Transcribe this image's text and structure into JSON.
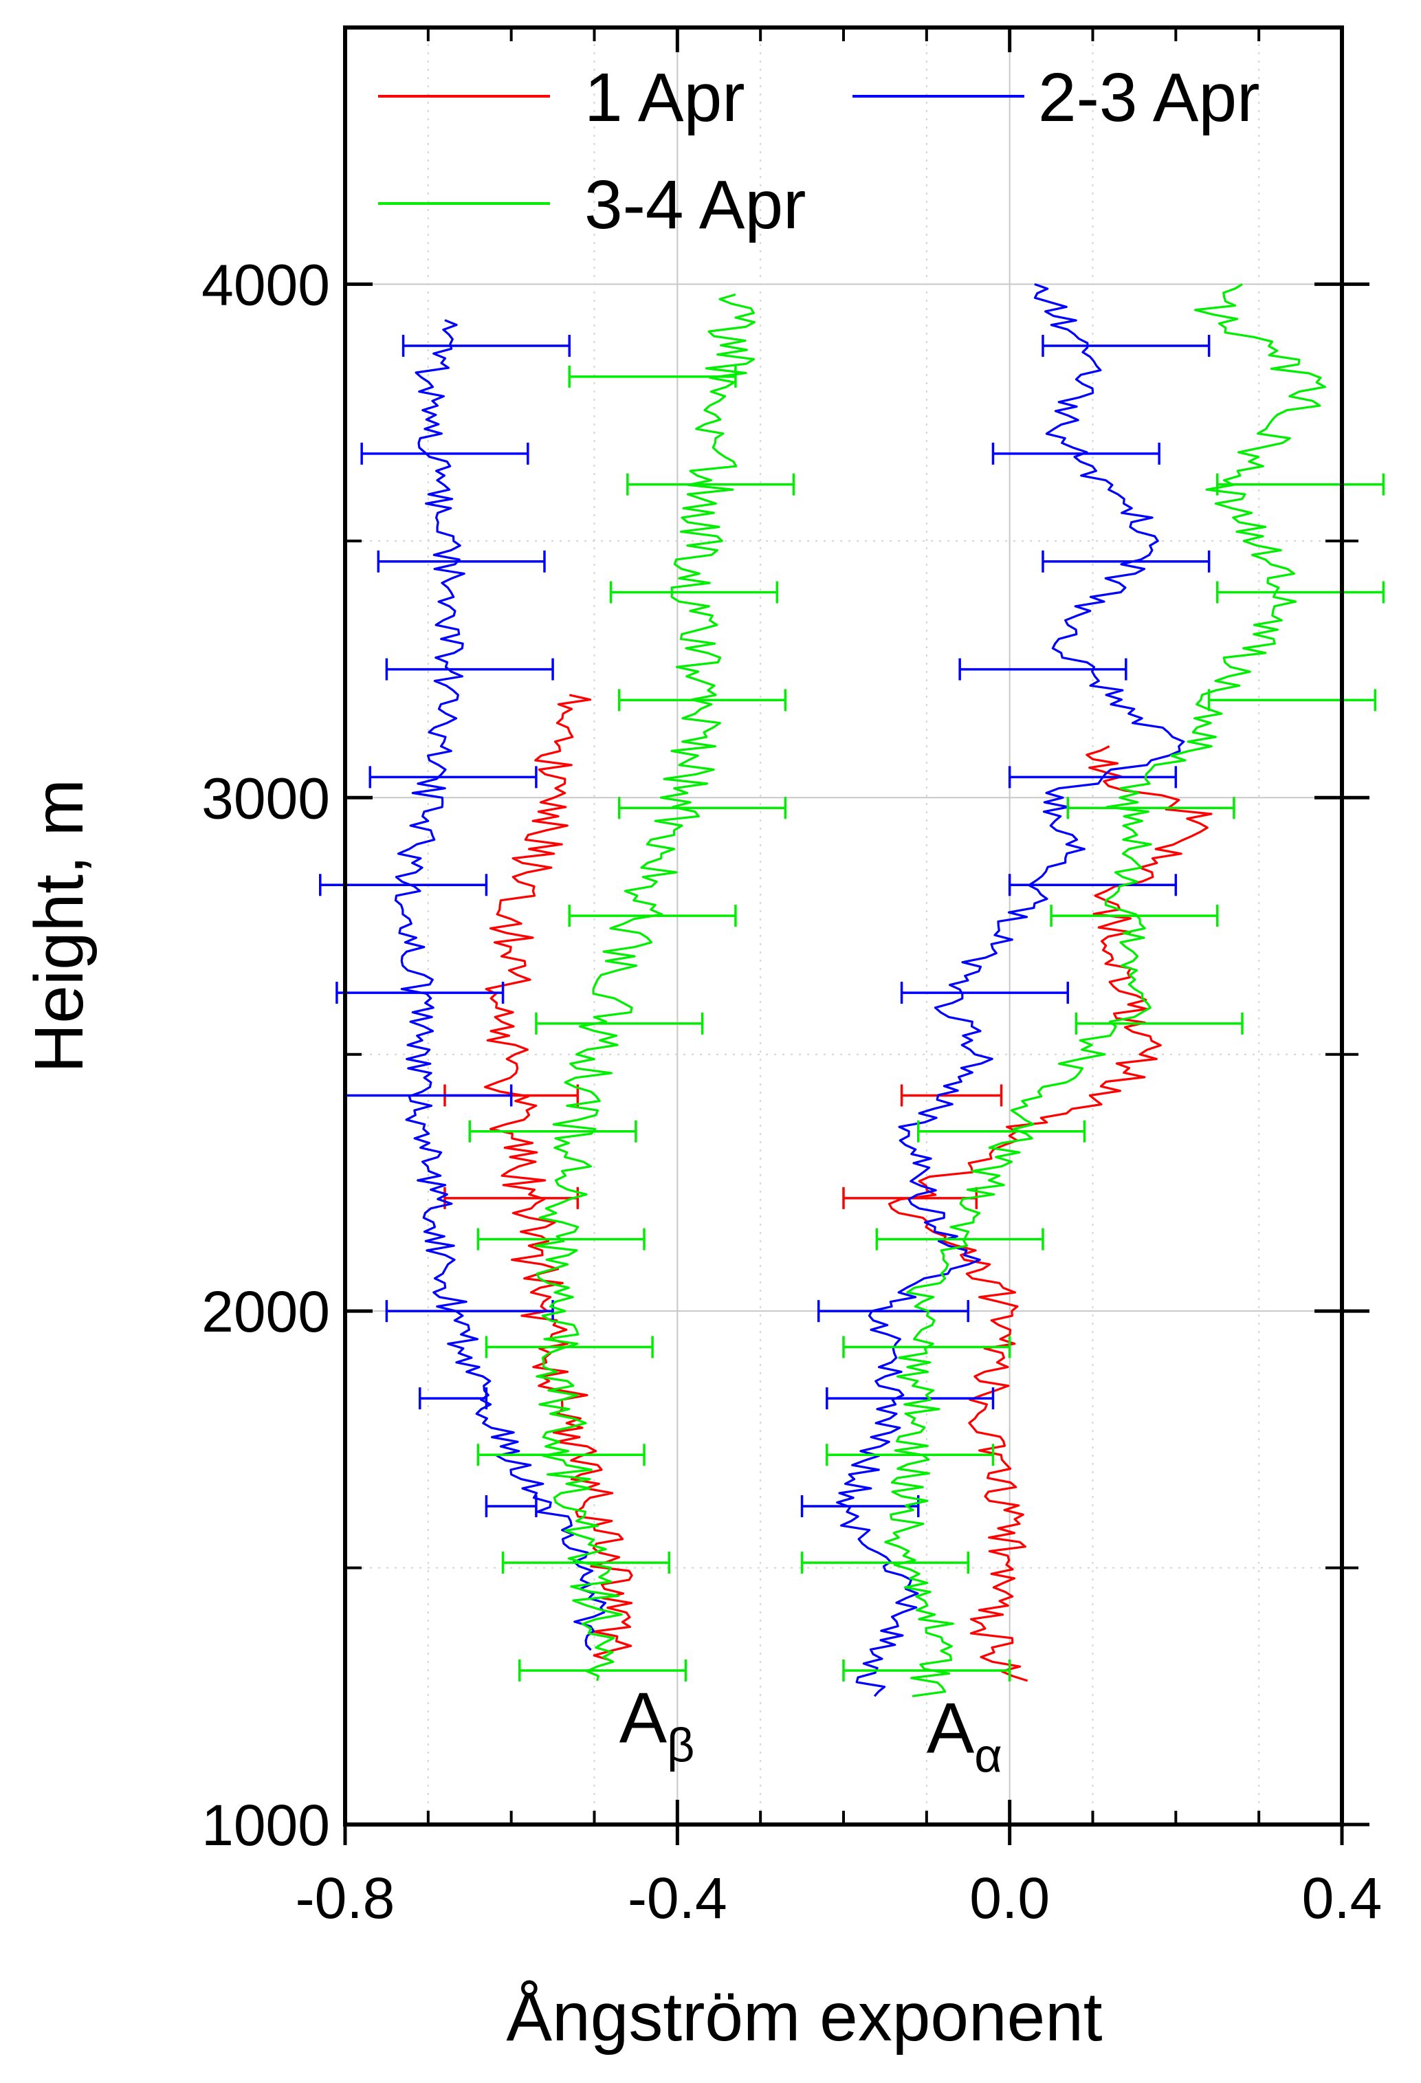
{
  "chart_data": {
    "type": "line",
    "xlabel": "Ångström exponent",
    "ylabel": "Height, m",
    "xlim": [
      -0.8,
      0.4
    ],
    "ylim": [
      1000,
      4500
    ],
    "x_ticks": [
      "-0.8",
      "-0.4",
      "0.0",
      "0.4"
    ],
    "x_tick_values": [
      -0.8,
      -0.4,
      0.0,
      0.4
    ],
    "y_ticks": [
      "1000",
      "2000",
      "3000",
      "4000"
    ],
    "y_tick_values": [
      1000,
      2000,
      3000,
      4000
    ],
    "grid": true,
    "legend_position": "top",
    "annotations": [
      {
        "main": "A",
        "sub": "β",
        "x": -0.47,
        "y": 1160
      },
      {
        "main": "A",
        "sub": "α",
        "x": -0.1,
        "y": 1140
      }
    ],
    "series": [
      {
        "name": "1 Apr",
        "color": "#ff0000",
        "groups": [
          {
            "label": "A_beta",
            "noise": 0.03,
            "points": [
              [
                -0.49,
                1320
              ],
              [
                -0.47,
                1450
              ],
              [
                -0.5,
                1600
              ],
              [
                -0.53,
                1800
              ],
              [
                -0.56,
                2000
              ],
              [
                -0.58,
                2200
              ],
              [
                -0.6,
                2400
              ],
              [
                -0.61,
                2600
              ],
              [
                -0.59,
                2800
              ],
              [
                -0.55,
                3000
              ],
              [
                -0.53,
                3200
              ]
            ]
          },
          {
            "label": "A_alpha",
            "noise": 0.025,
            "points": [
              [
                0.0,
                1280
              ],
              [
                -0.03,
                1400
              ],
              [
                0.0,
                1550
              ],
              [
                -0.03,
                1800
              ],
              [
                0.0,
                2000
              ],
              [
                -0.05,
                2100
              ],
              [
                -0.13,
                2200
              ],
              [
                0.0,
                2350
              ],
              [
                0.12,
                2420
              ],
              [
                0.16,
                2500
              ],
              [
                0.14,
                2650
              ],
              [
                0.12,
                2800
              ],
              [
                0.2,
                2900
              ],
              [
                0.25,
                2950
              ],
              [
                0.1,
                3050
              ],
              [
                0.12,
                3100
              ]
            ]
          }
        ],
        "error_bars": [
          {
            "y": 2220,
            "x": -0.6,
            "err": 0.08
          },
          {
            "y": 2420,
            "x": -0.6,
            "err": 0.08
          },
          {
            "y": 2220,
            "x": -0.12,
            "err": 0.08
          },
          {
            "y": 2420,
            "x": -0.07,
            "err": 0.06
          }
        ]
      },
      {
        "name": "2-3 Apr",
        "color": "#0000ff",
        "groups": [
          {
            "label": "A_beta",
            "noise": 0.02,
            "points": [
              [
                -0.51,
                1340
              ],
              [
                -0.5,
                1450
              ],
              [
                -0.55,
                1600
              ],
              [
                -0.63,
                1800
              ],
              [
                -0.67,
                2000
              ],
              [
                -0.69,
                2200
              ],
              [
                -0.71,
                2400
              ],
              [
                -0.71,
                2600
              ],
              [
                -0.73,
                2800
              ],
              [
                -0.7,
                3000
              ],
              [
                -0.68,
                3200
              ],
              [
                -0.67,
                3400
              ],
              [
                -0.69,
                3600
              ],
              [
                -0.7,
                3800
              ],
              [
                -0.68,
                3930
              ]
            ]
          },
          {
            "label": "A_alpha",
            "noise": 0.02,
            "points": [
              [
                -0.17,
                1250
              ],
              [
                -0.15,
                1350
              ],
              [
                -0.11,
                1450
              ],
              [
                -0.2,
                1600
              ],
              [
                -0.14,
                1800
              ],
              [
                -0.15,
                2000
              ],
              [
                -0.05,
                2100
              ],
              [
                -0.1,
                2200
              ],
              [
                -0.12,
                2350
              ],
              [
                -0.03,
                2500
              ],
              [
                -0.08,
                2600
              ],
              [
                0.0,
                2750
              ],
              [
                0.08,
                2900
              ],
              [
                0.05,
                3000
              ],
              [
                0.2,
                3100
              ],
              [
                0.05,
                3300
              ],
              [
                0.18,
                3500
              ],
              [
                0.06,
                3700
              ],
              [
                0.1,
                3850
              ],
              [
                0.03,
                4000
              ]
            ]
          }
        ],
        "error_bars": [
          {
            "y": 1620,
            "x": -0.6,
            "err": 0.03
          },
          {
            "y": 1620,
            "x": -0.18,
            "err": 0.07
          },
          {
            "y": 1830,
            "x": -0.67,
            "err": 0.04
          },
          {
            "y": 1830,
            "x": -0.12,
            "err": 0.1
          },
          {
            "y": 2000,
            "x": -0.65,
            "err": 0.1
          },
          {
            "y": 2000,
            "x": -0.14,
            "err": 0.09
          },
          {
            "y": 2420,
            "x": -0.7,
            "err": 0.1
          },
          {
            "y": 2620,
            "x": -0.71,
            "err": 0.1
          },
          {
            "y": 2620,
            "x": -0.03,
            "err": 0.1
          },
          {
            "y": 2830,
            "x": -0.73,
            "err": 0.1
          },
          {
            "y": 2830,
            "x": 0.1,
            "err": 0.1
          },
          {
            "y": 3040,
            "x": -0.67,
            "err": 0.1
          },
          {
            "y": 3040,
            "x": 0.1,
            "err": 0.1
          },
          {
            "y": 3250,
            "x": -0.65,
            "err": 0.1
          },
          {
            "y": 3250,
            "x": 0.04,
            "err": 0.1
          },
          {
            "y": 3460,
            "x": -0.66,
            "err": 0.1
          },
          {
            "y": 3460,
            "x": 0.14,
            "err": 0.1
          },
          {
            "y": 3670,
            "x": -0.68,
            "err": 0.1
          },
          {
            "y": 3670,
            "x": 0.08,
            "err": 0.1
          },
          {
            "y": 3880,
            "x": -0.63,
            "err": 0.1
          },
          {
            "y": 3880,
            "x": 0.14,
            "err": 0.1
          }
        ]
      },
      {
        "name": "3-4 Apr",
        "color": "#00ee00",
        "groups": [
          {
            "label": "A_beta",
            "noise": 0.03,
            "points": [
              [
                -0.5,
                1280
              ],
              [
                -0.49,
                1400
              ],
              [
                -0.52,
                1600
              ],
              [
                -0.54,
                1800
              ],
              [
                -0.55,
                2000
              ],
              [
                -0.54,
                2200
              ],
              [
                -0.52,
                2400
              ],
              [
                -0.48,
                2600
              ],
              [
                -0.44,
                2800
              ],
              [
                -0.39,
                3000
              ],
              [
                -0.37,
                3200
              ],
              [
                -0.38,
                3400
              ],
              [
                -0.36,
                3600
              ],
              [
                -0.34,
                3800
              ],
              [
                -0.33,
                3980
              ]
            ]
          },
          {
            "label": "A_alpha",
            "noise": 0.025,
            "points": [
              [
                -0.1,
                1250
              ],
              [
                -0.09,
                1400
              ],
              [
                -0.13,
                1550
              ],
              [
                -0.11,
                1800
              ],
              [
                -0.11,
                2000
              ],
              [
                -0.05,
                2200
              ],
              [
                0.03,
                2400
              ],
              [
                0.15,
                2600
              ],
              [
                0.14,
                2800
              ],
              [
                0.15,
                2900
              ],
              [
                0.14,
                3000
              ],
              [
                0.22,
                3100
              ],
              [
                0.25,
                3200
              ],
              [
                0.34,
                3400
              ],
              [
                0.26,
                3600
              ],
              [
                0.37,
                3800
              ],
              [
                0.24,
                3950
              ],
              [
                0.28,
                4000
              ]
            ]
          }
        ],
        "error_bars": [
          {
            "y": 1300,
            "x": -0.49,
            "err": 0.1
          },
          {
            "y": 1300,
            "x": -0.1,
            "err": 0.1
          },
          {
            "y": 1510,
            "x": -0.51,
            "err": 0.1
          },
          {
            "y": 1510,
            "x": -0.15,
            "err": 0.1
          },
          {
            "y": 1720,
            "x": -0.54,
            "err": 0.1
          },
          {
            "y": 1720,
            "x": -0.12,
            "err": 0.1
          },
          {
            "y": 1930,
            "x": -0.53,
            "err": 0.1
          },
          {
            "y": 1930,
            "x": -0.1,
            "err": 0.1
          },
          {
            "y": 2140,
            "x": -0.54,
            "err": 0.1
          },
          {
            "y": 2140,
            "x": -0.06,
            "err": 0.1
          },
          {
            "y": 2350,
            "x": -0.55,
            "err": 0.1
          },
          {
            "y": 2350,
            "x": -0.01,
            "err": 0.1
          },
          {
            "y": 2560,
            "x": -0.47,
            "err": 0.1
          },
          {
            "y": 2560,
            "x": 0.18,
            "err": 0.1
          },
          {
            "y": 2770,
            "x": -0.43,
            "err": 0.1
          },
          {
            "y": 2770,
            "x": 0.15,
            "err": 0.1
          },
          {
            "y": 2980,
            "x": -0.37,
            "err": 0.1
          },
          {
            "y": 2980,
            "x": 0.17,
            "err": 0.1
          },
          {
            "y": 3190,
            "x": -0.37,
            "err": 0.1
          },
          {
            "y": 3190,
            "x": 0.34,
            "err": 0.1
          },
          {
            "y": 3400,
            "x": -0.38,
            "err": 0.1
          },
          {
            "y": 3400,
            "x": 0.35,
            "err": 0.1
          },
          {
            "y": 3610,
            "x": -0.36,
            "err": 0.1
          },
          {
            "y": 3610,
            "x": 0.35,
            "err": 0.1
          },
          {
            "y": 3820,
            "x": -0.43,
            "err": 0.1
          }
        ]
      }
    ]
  }
}
